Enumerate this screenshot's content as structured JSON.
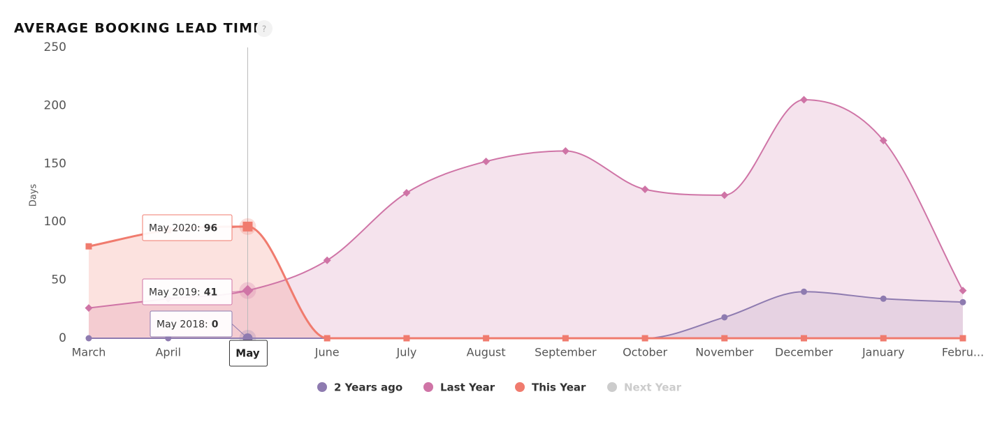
{
  "chart_data": {
    "type": "spline-area",
    "title": "AVERAGE BOOKING LEAD TIME",
    "help_icon": "?",
    "y_label": "Days",
    "categories": [
      "March",
      "April",
      "May",
      "June",
      "July",
      "August",
      "September",
      "October",
      "November",
      "December",
      "January",
      "Febru..."
    ],
    "ylim": [
      0,
      250
    ],
    "yticks": [
      0,
      50,
      100,
      150,
      200,
      250
    ],
    "grid": false,
    "legend": "bottom",
    "series": [
      {
        "name": "2 Years ago",
        "color": "#8e7bb0",
        "marker": "circle",
        "values": [
          0,
          0,
          0,
          0,
          0,
          0,
          0,
          0,
          18,
          40,
          34,
          31
        ]
      },
      {
        "name": "Last Year",
        "color": "#cf74a6",
        "marker": "diamond",
        "values": [
          26,
          34,
          41,
          67,
          125,
          152,
          161,
          128,
          123,
          205,
          170,
          41
        ]
      },
      {
        "name": "This Year",
        "color": "#f07b6e",
        "marker": "square",
        "values": [
          79,
          93,
          96,
          0,
          0,
          0,
          0,
          0,
          0,
          0,
          0,
          0
        ]
      },
      {
        "name": "Next Year",
        "color": "#cccccc",
        "hidden": true,
        "values": [
          null,
          null,
          null,
          null,
          null,
          null,
          null,
          null,
          null,
          null,
          null,
          null
        ]
      }
    ],
    "tooltips": [
      {
        "label": "May 2020:",
        "series": 2,
        "index": 2
      },
      {
        "label": "May 2019:",
        "series": 1,
        "index": 2
      },
      {
        "label": "May 2018:",
        "series": 0,
        "index": 2
      }
    ],
    "crosshair_index": 2
  }
}
